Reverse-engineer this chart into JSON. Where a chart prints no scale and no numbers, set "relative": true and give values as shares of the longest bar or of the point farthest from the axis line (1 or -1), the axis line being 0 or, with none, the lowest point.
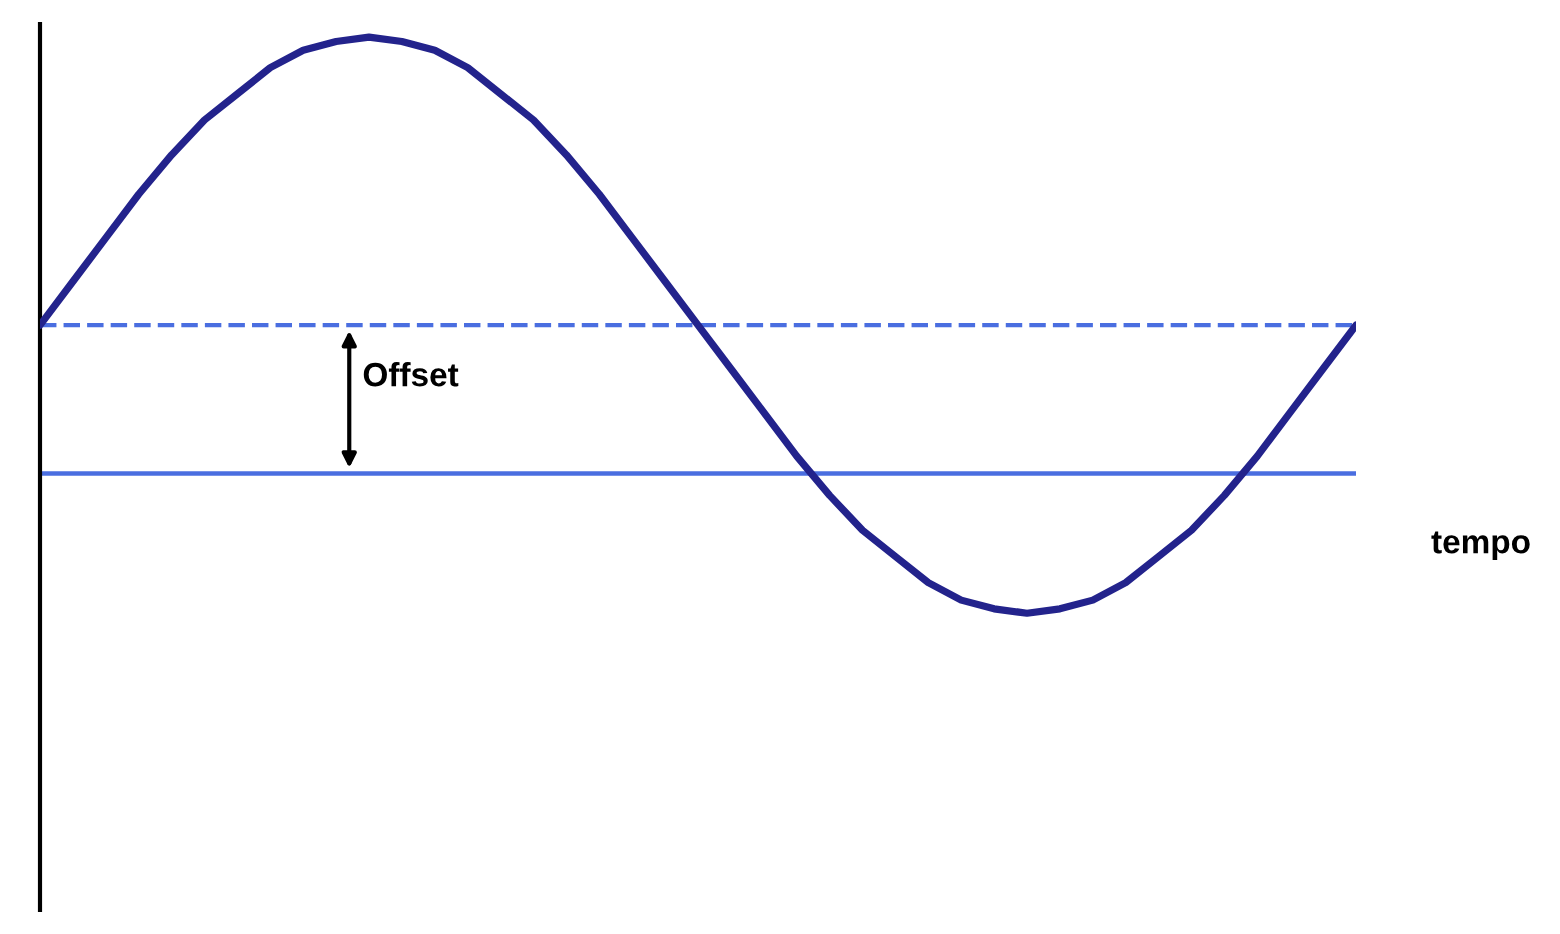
{
  "chart_data": {
    "type": "line",
    "relative": true,
    "xlabel": "tempo",
    "categories": [
      null,
      null,
      null,
      null,
      null,
      null,
      null,
      null,
      null,
      null,
      null,
      null,
      null,
      null,
      null,
      null,
      null,
      null,
      null,
      null,
      null,
      null,
      null,
      null,
      null,
      null,
      null,
      null,
      null,
      null,
      null,
      null,
      null,
      null,
      null,
      null,
      null,
      null,
      null,
      null,
      null
    ],
    "series": [
      {
        "color": "#23238c",
        "values": [
          0.34,
          0.44,
          0.54,
          0.64,
          0.73,
          0.81,
          0.87,
          0.93,
          0.97,
          0.99,
          1.0,
          0.99,
          0.97,
          0.93,
          0.87,
          0.81,
          0.73,
          0.64,
          0.54,
          0.44,
          0.34,
          0.24,
          0.14,
          0.04,
          -0.05,
          -0.13,
          -0.19,
          -0.25,
          -0.29,
          -0.31,
          -0.32,
          -0.31,
          -0.29,
          -0.25,
          -0.19,
          -0.13,
          -0.05,
          0.04,
          0.14,
          0.24,
          0.34
        ]
      }
    ],
    "ref_lines": [
      {
        "axis": "y",
        "value": 0.34,
        "color": "#4a6ee0",
        "line_style": "dashed"
      },
      {
        "axis": "y",
        "value": 0,
        "color": "#4a6ee0",
        "line_style": "solid"
      }
    ],
    "annotations": [
      "Offset"
    ],
    "marker": "none",
    "line_style": "solid",
    "grid": false,
    "legend": false
  }
}
